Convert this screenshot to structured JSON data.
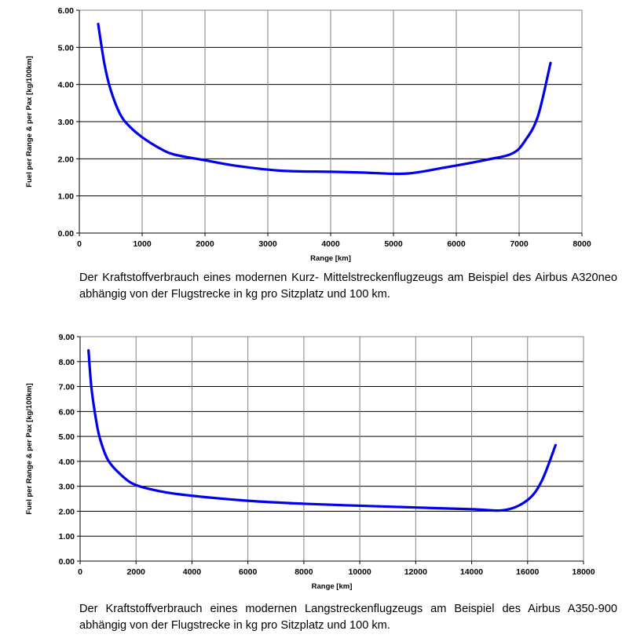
{
  "chart_data": [
    {
      "type": "line",
      "xlabel": "Range [km]",
      "ylabel": "Fuel per Range  & per Pax [kg/100km]",
      "xlim": [
        0,
        8000
      ],
      "ylim": [
        0,
        6
      ],
      "x_ticks": [
        "0",
        "1000",
        "2000",
        "3000",
        "4000",
        "5000",
        "6000",
        "7000",
        "8000"
      ],
      "y_ticks": [
        "0.00",
        "1.00",
        "2.00",
        "3.00",
        "4.00",
        "5.00",
        "6.00"
      ],
      "grid": true,
      "legend": "none",
      "series": [
        {
          "color": "#0000ee",
          "x": [
            300,
            400,
            500,
            650,
            800,
            1000,
            1250,
            1500,
            2000,
            2500,
            3200,
            4000,
            4500,
            5200,
            5800,
            6500,
            6900,
            7100,
            7300,
            7500
          ],
          "y": [
            5.63,
            4.55,
            3.85,
            3.2,
            2.87,
            2.58,
            2.31,
            2.12,
            1.96,
            1.81,
            1.68,
            1.65,
            1.63,
            1.6,
            1.76,
            1.98,
            2.15,
            2.5,
            3.15,
            4.58
          ]
        }
      ],
      "caption": "Der Kraftstoffverbrauch eines modernen Kurz- Mittelstreckenflugzeugs am Beispiel des Airbus A320neo abhängig von der Flugstrecke in kg pro Sitzplatz und 100 km."
    },
    {
      "type": "line",
      "xlabel": "Range [km]",
      "ylabel": "Fuel per Range  & per Pax [kg/100km]",
      "xlim": [
        0,
        18000
      ],
      "ylim": [
        0,
        9
      ],
      "x_ticks": [
        "0",
        "2000",
        "4000",
        "6000",
        "8000",
        "10000",
        "12000",
        "14000",
        "16000",
        "18000"
      ],
      "y_ticks": [
        "0.00",
        "1.00",
        "2.00",
        "3.00",
        "4.00",
        "5.00",
        "6.00",
        "7.00",
        "8.00",
        "9.00"
      ],
      "grid": true,
      "legend": "none",
      "series": [
        {
          "color": "#0000ee",
          "x": [
            300,
            400,
            550,
            700,
            1000,
            1500,
            2000,
            3000,
            4000,
            6000,
            8000,
            10000,
            12000,
            14000,
            15200,
            16000,
            16500,
            17000
          ],
          "y": [
            8.45,
            7.0,
            5.8,
            4.95,
            4.05,
            3.42,
            3.05,
            2.77,
            2.62,
            2.42,
            2.3,
            2.22,
            2.15,
            2.08,
            2.05,
            2.45,
            3.2,
            4.65
          ]
        }
      ],
      "caption": "Der Kraftstoffverbrauch eines modernen Langstreckenflugzeugs am Beispiel des Airbus A350-900 abhängig von der Flugstrecke in kg pro Sitzplatz und 100 km."
    }
  ]
}
